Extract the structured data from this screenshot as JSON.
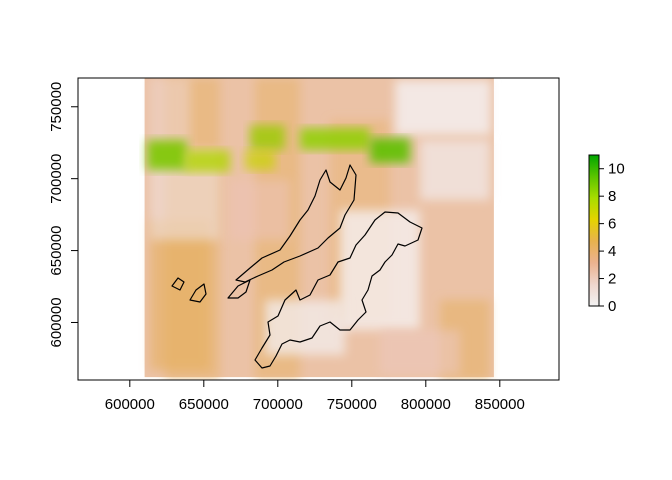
{
  "chart_data": {
    "type": "heatmap",
    "title": "",
    "xlabel": "",
    "ylabel": "",
    "xlim": [
      565000,
      890000
    ],
    "ylim": [
      560000,
      770000
    ],
    "x_ticks": [
      {
        "value": 600000,
        "label": "600000"
      },
      {
        "value": 650000,
        "label": "650000"
      },
      {
        "value": 700000,
        "label": "700000"
      },
      {
        "value": 750000,
        "label": "750000"
      },
      {
        "value": 800000,
        "label": "800000"
      },
      {
        "value": 850000,
        "label": "850000"
      }
    ],
    "y_ticks": [
      {
        "value": 600000,
        "label": "600000"
      },
      {
        "value": 650000,
        "label": "650000"
      },
      {
        "value": 700000,
        "label": "700000"
      },
      {
        "value": 750000,
        "label": "750000"
      }
    ],
    "raster_extent": {
      "xmin": 610000,
      "xmax": 846000,
      "ymin": 562000,
      "ymax": 770000
    },
    "colorbar": {
      "min": 0,
      "max": 11,
      "ticks": [
        {
          "value": 0,
          "label": "0"
        },
        {
          "value": 2,
          "label": "2"
        },
        {
          "value": 4,
          "label": "4"
        },
        {
          "value": 6,
          "label": "6"
        },
        {
          "value": 8,
          "label": "8"
        },
        {
          "value": 10,
          "label": "10"
        }
      ],
      "palette": [
        "#f2f2f2",
        "#efd6cd",
        "#ebb28f",
        "#e8b24e",
        "#e5d300",
        "#a8dd00",
        "#5bc400",
        "#00a600"
      ]
    },
    "background_color": "#ffffff",
    "grid": false,
    "legend_position": "right"
  }
}
